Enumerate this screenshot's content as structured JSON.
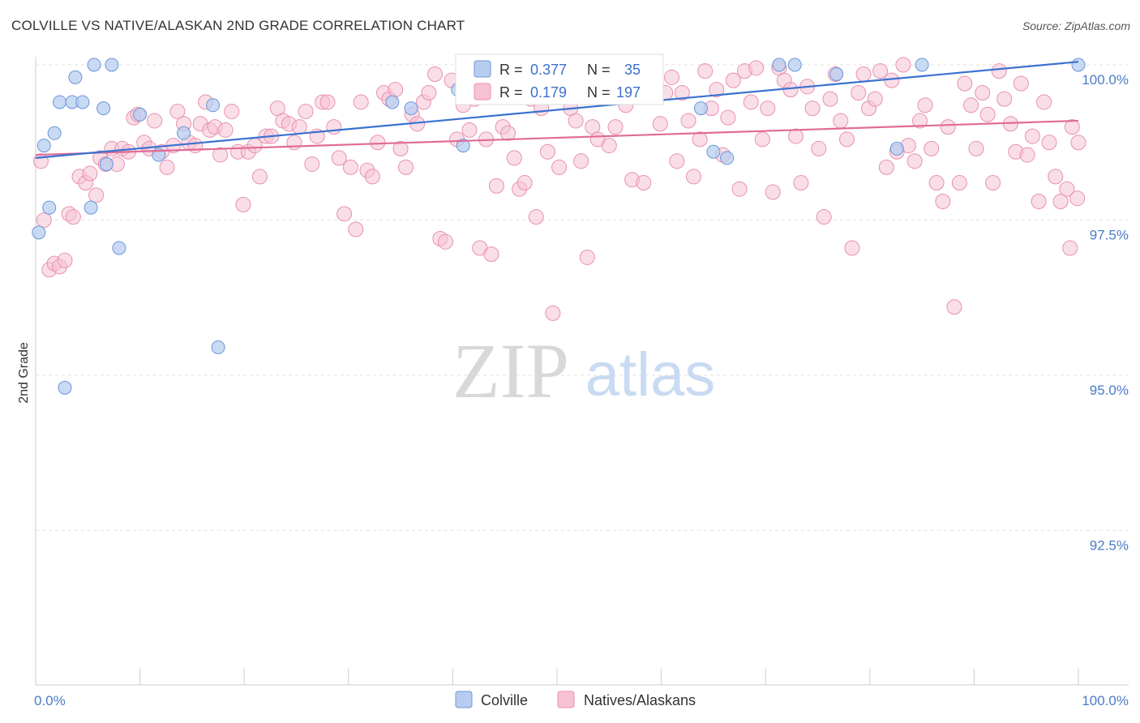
{
  "title": "COLVILLE VS NATIVE/ALASKAN 2ND GRADE CORRELATION CHART",
  "source": "Source: ZipAtlas.com",
  "watermark": {
    "zip": "ZIP",
    "atlas": "atlas"
  },
  "chart_data": {
    "type": "scatter",
    "title": "COLVILLE VS NATIVE/ALASKAN 2ND GRADE CORRELATION CHART",
    "xlabel": "",
    "ylabel": "2nd Grade",
    "xlim": [
      0,
      100
    ],
    "ylim": [
      90.5,
      100.4
    ],
    "x_tick_labels": {
      "left": "0.0%",
      "right": "100.0%"
    },
    "y_ticks": [
      {
        "value": 100.0,
        "label": "100.0%"
      },
      {
        "value": 97.5,
        "label": "97.5%"
      },
      {
        "value": 95.0,
        "label": "95.0%"
      },
      {
        "value": 92.5,
        "label": "92.5%"
      }
    ],
    "grid": true,
    "legend_position": "top-center",
    "colors": {
      "colville_fill": "#b7cdf0",
      "colville_stroke": "#6b96d8",
      "colville_line": "#3a72d0",
      "native_fill": "#f6c2d4",
      "native_stroke": "#e890b0",
      "native_line": "#e06c96"
    },
    "stats": [
      {
        "r_label": "R =",
        "r_value": "0.377",
        "n_label": "N =",
        "n_value": "35"
      },
      {
        "r_label": "R =",
        "r_value": "0.179",
        "n_label": "N =",
        "n_value": "197"
      }
    ],
    "series": [
      {
        "name": "Colville",
        "trend": {
          "x": [
            0,
            100
          ],
          "y": [
            98.5,
            100.05
          ]
        },
        "points": [
          [
            0.3,
            97.3
          ],
          [
            0.8,
            98.7
          ],
          [
            1.3,
            97.7
          ],
          [
            1.8,
            98.9
          ],
          [
            2.3,
            99.4
          ],
          [
            2.8,
            94.8
          ],
          [
            3.5,
            99.4
          ],
          [
            3.8,
            99.8
          ],
          [
            4.5,
            99.4
          ],
          [
            5.3,
            97.7
          ],
          [
            5.6,
            100.0
          ],
          [
            6.5,
            99.3
          ],
          [
            6.8,
            98.4
          ],
          [
            7.3,
            100.0
          ],
          [
            8.0,
            97.05
          ],
          [
            10.0,
            99.2
          ],
          [
            11.8,
            98.55
          ],
          [
            14.2,
            98.9
          ],
          [
            17.0,
            99.35
          ],
          [
            17.5,
            95.45
          ],
          [
            34.2,
            99.4
          ],
          [
            36.0,
            99.3
          ],
          [
            40.5,
            99.6
          ],
          [
            41.0,
            98.7
          ],
          [
            41.5,
            100.0
          ],
          [
            45.5,
            99.7
          ],
          [
            63.8,
            99.3
          ],
          [
            65.0,
            98.6
          ],
          [
            66.3,
            98.5
          ],
          [
            71.3,
            100.0
          ],
          [
            72.8,
            100.0
          ],
          [
            76.8,
            99.85
          ],
          [
            82.6,
            98.65
          ],
          [
            85.0,
            100.0
          ],
          [
            100.0,
            100.0
          ]
        ]
      },
      {
        "name": "Natives/Alaskans",
        "trend": {
          "x": [
            0,
            100
          ],
          "y": [
            98.55,
            99.1
          ]
        },
        "points": [
          [
            0.5,
            98.45
          ],
          [
            0.8,
            97.5
          ],
          [
            1.3,
            96.7
          ],
          [
            1.8,
            96.8
          ],
          [
            2.3,
            96.75
          ],
          [
            2.8,
            96.85
          ],
          [
            3.2,
            97.6
          ],
          [
            3.6,
            97.55
          ],
          [
            4.2,
            98.2
          ],
          [
            4.8,
            98.1
          ],
          [
            5.2,
            98.25
          ],
          [
            5.8,
            97.9
          ],
          [
            6.2,
            98.5
          ],
          [
            6.7,
            98.4
          ],
          [
            7.3,
            98.65
          ],
          [
            7.8,
            98.4
          ],
          [
            8.3,
            98.65
          ],
          [
            8.9,
            98.6
          ],
          [
            9.4,
            99.15
          ],
          [
            9.8,
            99.2
          ],
          [
            10.4,
            98.75
          ],
          [
            10.9,
            98.65
          ],
          [
            11.4,
            99.1
          ],
          [
            12.1,
            98.6
          ],
          [
            12.6,
            98.35
          ],
          [
            13.2,
            98.7
          ],
          [
            13.6,
            99.25
          ],
          [
            14.2,
            99.05
          ],
          [
            14.7,
            98.75
          ],
          [
            15.3,
            98.7
          ],
          [
            15.8,
            99.05
          ],
          [
            16.3,
            99.4
          ],
          [
            16.7,
            98.95
          ],
          [
            17.2,
            99.0
          ],
          [
            17.7,
            98.55
          ],
          [
            18.2,
            98.95
          ],
          [
            18.8,
            99.25
          ],
          [
            19.4,
            98.6
          ],
          [
            19.9,
            97.75
          ],
          [
            20.4,
            98.6
          ],
          [
            21.0,
            98.7
          ],
          [
            21.5,
            98.2
          ],
          [
            22.1,
            98.85
          ],
          [
            22.6,
            98.85
          ],
          [
            23.2,
            99.3
          ],
          [
            23.7,
            99.1
          ],
          [
            24.3,
            99.05
          ],
          [
            24.8,
            98.75
          ],
          [
            25.3,
            99.0
          ],
          [
            25.9,
            99.25
          ],
          [
            26.5,
            98.4
          ],
          [
            27.0,
            98.85
          ],
          [
            27.5,
            99.4
          ],
          [
            28.0,
            99.4
          ],
          [
            28.6,
            99.0
          ],
          [
            29.1,
            98.5
          ],
          [
            29.6,
            97.6
          ],
          [
            30.2,
            98.35
          ],
          [
            30.7,
            97.35
          ],
          [
            31.2,
            99.4
          ],
          [
            31.8,
            98.3
          ],
          [
            32.3,
            98.2
          ],
          [
            32.8,
            98.75
          ],
          [
            33.4,
            99.55
          ],
          [
            33.9,
            99.45
          ],
          [
            34.5,
            99.6
          ],
          [
            35.0,
            98.65
          ],
          [
            35.5,
            98.35
          ],
          [
            36.1,
            99.2
          ],
          [
            36.6,
            99.05
          ],
          [
            37.2,
            99.4
          ],
          [
            37.7,
            99.55
          ],
          [
            38.3,
            99.85
          ],
          [
            38.8,
            97.2
          ],
          [
            39.3,
            97.15
          ],
          [
            39.9,
            99.75
          ],
          [
            40.4,
            98.8
          ],
          [
            41.0,
            99.35
          ],
          [
            41.6,
            98.95
          ],
          [
            42.1,
            99.45
          ],
          [
            42.6,
            97.05
          ],
          [
            43.2,
            98.8
          ],
          [
            43.7,
            96.95
          ],
          [
            44.2,
            98.05
          ],
          [
            44.8,
            99.0
          ],
          [
            45.3,
            98.9
          ],
          [
            45.9,
            98.5
          ],
          [
            46.4,
            98.0
          ],
          [
            46.9,
            98.1
          ],
          [
            47.5,
            99.45
          ],
          [
            48.0,
            97.55
          ],
          [
            48.5,
            99.3
          ],
          [
            49.1,
            98.6
          ],
          [
            49.6,
            96.0
          ],
          [
            50.2,
            98.35
          ],
          [
            50.7,
            99.75
          ],
          [
            51.3,
            99.3
          ],
          [
            51.8,
            99.1
          ],
          [
            52.3,
            98.45
          ],
          [
            52.9,
            96.9
          ],
          [
            53.4,
            99.0
          ],
          [
            53.9,
            98.8
          ],
          [
            54.5,
            100.0
          ],
          [
            55.0,
            98.7
          ],
          [
            55.6,
            99.0
          ],
          [
            56.1,
            99.85
          ],
          [
            56.6,
            99.35
          ],
          [
            57.2,
            98.15
          ],
          [
            57.7,
            99.85
          ],
          [
            58.3,
            98.1
          ],
          [
            58.8,
            100.0
          ],
          [
            59.3,
            99.65
          ],
          [
            59.9,
            99.05
          ],
          [
            60.4,
            99.55
          ],
          [
            61.0,
            99.8
          ],
          [
            61.5,
            98.45
          ],
          [
            62.0,
            99.55
          ],
          [
            62.6,
            99.1
          ],
          [
            63.1,
            98.2
          ],
          [
            63.7,
            98.8
          ],
          [
            64.2,
            99.9
          ],
          [
            64.8,
            99.3
          ],
          [
            65.3,
            99.6
          ],
          [
            65.9,
            98.55
          ],
          [
            66.4,
            99.15
          ],
          [
            66.9,
            99.75
          ],
          [
            67.5,
            98.0
          ],
          [
            68.0,
            99.9
          ],
          [
            68.6,
            99.4
          ],
          [
            69.1,
            99.95
          ],
          [
            69.7,
            98.8
          ],
          [
            70.2,
            99.3
          ],
          [
            70.7,
            97.95
          ],
          [
            71.3,
            99.95
          ],
          [
            71.8,
            99.75
          ],
          [
            72.4,
            99.6
          ],
          [
            72.9,
            98.85
          ],
          [
            73.4,
            98.1
          ],
          [
            74.0,
            99.65
          ],
          [
            74.5,
            99.3
          ],
          [
            75.1,
            98.65
          ],
          [
            75.6,
            97.55
          ],
          [
            76.2,
            99.45
          ],
          [
            76.7,
            99.85
          ],
          [
            77.2,
            99.1
          ],
          [
            77.8,
            98.8
          ],
          [
            78.3,
            97.05
          ],
          [
            78.9,
            99.55
          ],
          [
            79.4,
            99.85
          ],
          [
            79.9,
            99.3
          ],
          [
            80.5,
            99.45
          ],
          [
            81.0,
            99.9
          ],
          [
            81.6,
            98.35
          ],
          [
            82.1,
            99.75
          ],
          [
            82.6,
            98.6
          ],
          [
            83.2,
            100.0
          ],
          [
            83.7,
            98.7
          ],
          [
            84.3,
            98.45
          ],
          [
            84.8,
            99.1
          ],
          [
            85.3,
            99.35
          ],
          [
            85.9,
            98.65
          ],
          [
            86.4,
            98.1
          ],
          [
            87.0,
            97.8
          ],
          [
            87.5,
            99.0
          ],
          [
            88.1,
            96.1
          ],
          [
            88.6,
            98.1
          ],
          [
            89.1,
            99.7
          ],
          [
            89.7,
            99.35
          ],
          [
            90.2,
            98.65
          ],
          [
            90.8,
            99.55
          ],
          [
            91.3,
            99.2
          ],
          [
            91.8,
            98.1
          ],
          [
            92.4,
            99.9
          ],
          [
            92.9,
            99.45
          ],
          [
            93.5,
            99.05
          ],
          [
            94.0,
            98.6
          ],
          [
            94.5,
            99.7
          ],
          [
            95.1,
            98.55
          ],
          [
            95.6,
            98.85
          ],
          [
            96.2,
            97.8
          ],
          [
            96.7,
            99.4
          ],
          [
            97.2,
            98.75
          ],
          [
            97.8,
            98.2
          ],
          [
            98.3,
            97.8
          ],
          [
            98.9,
            98.0
          ],
          [
            99.4,
            99.0
          ],
          [
            99.9,
            97.85
          ],
          [
            100.0,
            98.75
          ],
          [
            99.2,
            97.05
          ]
        ]
      }
    ]
  },
  "legend": {
    "items": [
      "Colville",
      "Natives/Alaskans"
    ]
  }
}
